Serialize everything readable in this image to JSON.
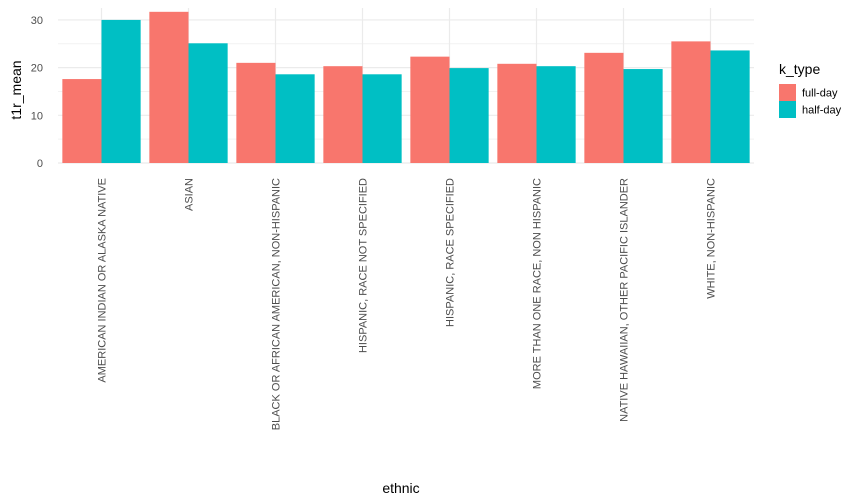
{
  "chart_data": {
    "type": "bar",
    "xlabel": "ethnic",
    "ylabel": "t1r_mean",
    "ylim": [
      0,
      32.5
    ],
    "yticks": [
      0,
      10,
      20,
      30
    ],
    "grid": true,
    "legend": {
      "title": "k_type",
      "position": "right"
    },
    "categories": [
      "AMERICAN INDIAN OR ALASKA NATIVE",
      "ASIAN",
      "BLACK OR AFRICAN AMERICAN, NON-HISPANIC",
      "HISPANIC, RACE NOT SPECIFIED",
      "HISPANIC, RACE SPECIFIED",
      "MORE THAN ONE RACE, NON HISPANIC",
      "NATIVE HAWAIIAN, OTHER PACIFIC ISLANDER",
      "WHITE, NON-HISPANIC"
    ],
    "series": [
      {
        "name": "full-day",
        "color": "#F8766D",
        "values": [
          17.6,
          31.7,
          21.0,
          20.3,
          22.3,
          20.8,
          23.1,
          25.5
        ]
      },
      {
        "name": "half-day",
        "color": "#00BFC4",
        "values": [
          30.0,
          25.1,
          18.6,
          18.6,
          19.9,
          20.3,
          19.7,
          23.6
        ]
      }
    ]
  }
}
